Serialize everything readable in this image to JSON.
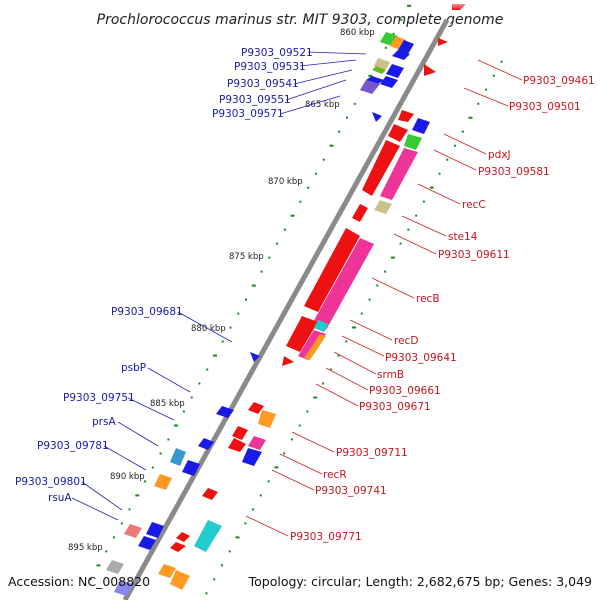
{
  "title": "Prochlorococcus marinus str. MIT 9303, complete genome",
  "footer": {
    "accession": "Accession: NC_008820",
    "topology": "Topology: circular; Length: 2,682,675 bp; Genes: 3,049"
  },
  "colors": {
    "left_label": "#1a1aaa",
    "right_label": "#c8141e",
    "backbone": "#8a8a8a",
    "tick": "#1a8a1a"
  },
  "kbp_ticks": [
    "860 kbp",
    "865 kbp",
    "870 kbp",
    "875 kbp",
    "880 kbp",
    "885 kbp",
    "890 kbp",
    "895 kbp"
  ],
  "labels_left": [
    "P9303_09521",
    "P9303_09531",
    "P9303_09541",
    "P9303_09551",
    "P9303_09571",
    "P9303_09681",
    "psbP",
    "P9303_09751",
    "prsA",
    "P9303_09781",
    "P9303_09801",
    "rsuA"
  ],
  "labels_right": [
    "P9303_09461",
    "P9303_09501",
    "pdxJ",
    "P9303_09581",
    "recC",
    "ste14",
    "P9303_09611",
    "recB",
    "recD",
    "P9303_09641",
    "srmB",
    "P9303_09661",
    "P9303_09671",
    "P9303_09711",
    "recR",
    "P9303_09741",
    "P9303_09771"
  ]
}
